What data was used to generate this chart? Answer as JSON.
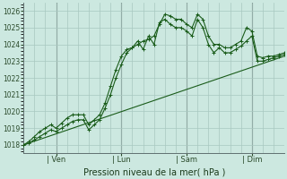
{
  "background_color": "#cce8e0",
  "grid_color": "#a8c8c0",
  "line_color": "#1a5c1a",
  "title": "Pression niveau de la mer( hPa )",
  "ylabel_vals": [
    1018,
    1019,
    1020,
    1021,
    1022,
    1023,
    1024,
    1025,
    1026
  ],
  "xlim": [
    0,
    48
  ],
  "ylim": [
    1017.5,
    1026.5
  ],
  "vline_positions": [
    6,
    18,
    30,
    42
  ],
  "x_tick_labels": [
    "| Ven",
    "| Lun",
    "| Sam",
    "| Dim"
  ],
  "series1_x": [
    0,
    1,
    2,
    3,
    4,
    5,
    6,
    7,
    8,
    9,
    10,
    11,
    12,
    13,
    14,
    15,
    16,
    17,
    18,
    19,
    20,
    21,
    22,
    23,
    24,
    25,
    26,
    27,
    28,
    29,
    30,
    31,
    32,
    33,
    34,
    35,
    36,
    37,
    38,
    39,
    40,
    41,
    42,
    43,
    44,
    45,
    46,
    47,
    48
  ],
  "series1_y": [
    1018.0,
    1018.2,
    1018.5,
    1018.8,
    1019.0,
    1019.2,
    1019.0,
    1019.3,
    1019.6,
    1019.8,
    1019.8,
    1019.8,
    1019.2,
    1019.5,
    1019.8,
    1020.5,
    1021.5,
    1022.5,
    1023.3,
    1023.7,
    1023.8,
    1024.0,
    1024.2,
    1024.3,
    1024.5,
    1025.2,
    1025.8,
    1025.7,
    1025.5,
    1025.5,
    1025.2,
    1025.0,
    1025.8,
    1025.5,
    1024.5,
    1024.0,
    1024.0,
    1023.8,
    1023.8,
    1024.0,
    1024.2,
    1025.0,
    1024.8,
    1023.3,
    1023.2,
    1023.3,
    1023.3,
    1023.4,
    1023.5
  ],
  "series2_x": [
    0,
    1,
    2,
    3,
    4,
    5,
    6,
    7,
    8,
    9,
    10,
    11,
    12,
    13,
    14,
    15,
    16,
    17,
    18,
    19,
    20,
    21,
    22,
    23,
    24,
    25,
    26,
    27,
    28,
    29,
    30,
    31,
    32,
    33,
    34,
    35,
    36,
    37,
    38,
    39,
    40,
    41,
    42,
    43,
    44,
    45,
    46,
    47,
    48
  ],
  "series2_y": [
    1018.0,
    1018.1,
    1018.3,
    1018.5,
    1018.7,
    1018.9,
    1018.8,
    1019.0,
    1019.2,
    1019.4,
    1019.5,
    1019.5,
    1018.9,
    1019.2,
    1019.5,
    1020.2,
    1021.0,
    1022.0,
    1022.8,
    1023.5,
    1023.8,
    1024.2,
    1023.7,
    1024.5,
    1024.0,
    1025.3,
    1025.5,
    1025.2,
    1025.0,
    1025.0,
    1024.8,
    1024.5,
    1025.5,
    1025.0,
    1024.0,
    1023.5,
    1023.8,
    1023.5,
    1023.5,
    1023.7,
    1023.9,
    1024.2,
    1024.5,
    1023.0,
    1023.0,
    1023.1,
    1023.2,
    1023.3,
    1023.4
  ],
  "trend_x": [
    0,
    48
  ],
  "trend_y": [
    1018.0,
    1023.3
  ],
  "figsize": [
    3.2,
    2.0
  ],
  "dpi": 100
}
